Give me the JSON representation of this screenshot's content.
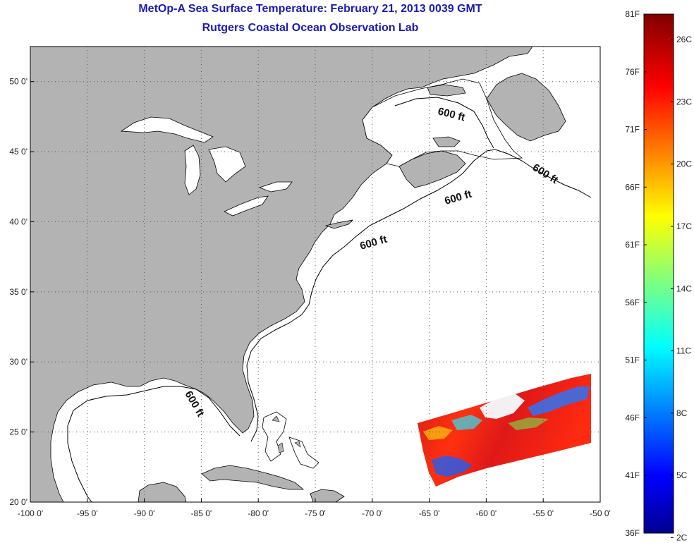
{
  "title": {
    "line1": "MetOp-A Sea Surface Temperature:  February 21, 2013 0039 GMT",
    "line2": "Rutgers Coastal Ocean Observation Lab"
  },
  "map": {
    "lon_range": [
      -100,
      -50
    ],
    "lat_range": [
      20,
      52.5
    ],
    "lon_ticks": [
      {
        "value": -100,
        "label": "-100 0'"
      },
      {
        "value": -95,
        "label": "-95 0'"
      },
      {
        "value": -90,
        "label": "-90 0'"
      },
      {
        "value": -85,
        "label": "-85 0'"
      },
      {
        "value": -80,
        "label": "-80 0'"
      },
      {
        "value": -75,
        "label": "-75 0'"
      },
      {
        "value": -70,
        "label": "-70 0'"
      },
      {
        "value": -65,
        "label": "-65 0'"
      },
      {
        "value": -60,
        "label": "-60 0'"
      },
      {
        "value": -55,
        "label": "-55 0'"
      },
      {
        "value": -50,
        "label": "-50 0'"
      }
    ],
    "lat_ticks": [
      {
        "value": 20,
        "label": "20 0'"
      },
      {
        "value": 25,
        "label": "25 0'"
      },
      {
        "value": 30,
        "label": "30 0'"
      },
      {
        "value": 35,
        "label": "35 0'"
      },
      {
        "value": 40,
        "label": "40 0'"
      },
      {
        "value": 45,
        "label": "45 0'"
      },
      {
        "value": 50,
        "label": "50 0'"
      }
    ],
    "grid": "dotted",
    "land_color": "#b3b3b3",
    "water_color": "#ffffff",
    "contour_labels": [
      "600 ft",
      "600 ft",
      "600 ft",
      "600 ft",
      "600 ft"
    ]
  },
  "colorbar": {
    "min_f": 36,
    "max_f": 81,
    "f_labels": [
      "81F",
      "76F",
      "71F",
      "66F",
      "61F",
      "56F",
      "51F",
      "46F",
      "41F",
      "36F"
    ],
    "c_labels": [
      "26C",
      "23C",
      "20C",
      "17C",
      "14C",
      "11C",
      "8C",
      "5C",
      "2C"
    ],
    "colormap": "jet"
  }
}
